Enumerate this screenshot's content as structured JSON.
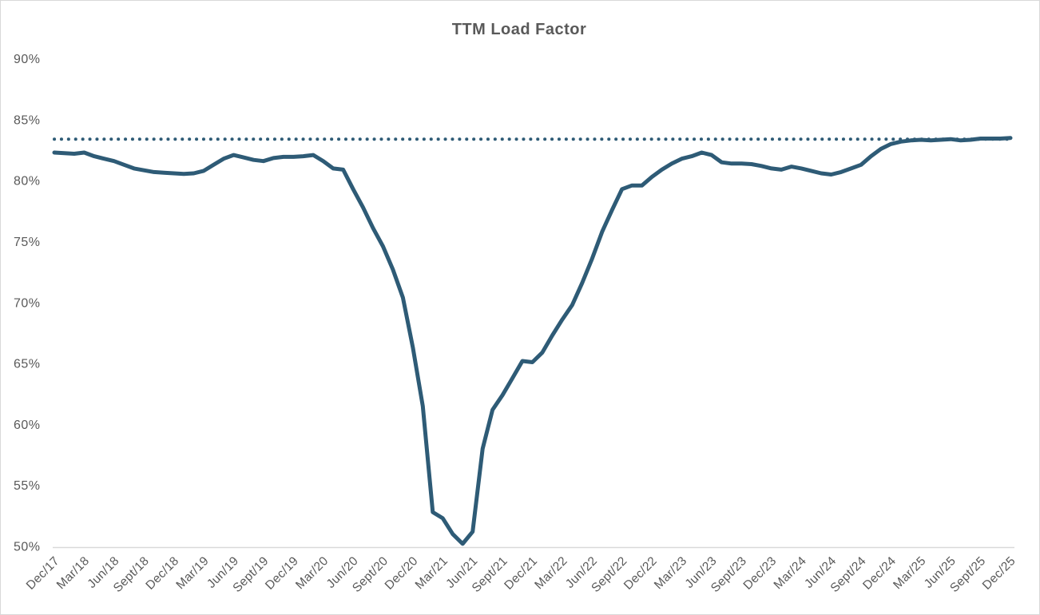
{
  "chart_data": {
    "type": "line",
    "title": "TTM Load Factor",
    "legend": "none",
    "grid": "off",
    "ylim": [
      50,
      90
    ],
    "ytick_step": 5,
    "ytick_labels": [
      "90%",
      "85%",
      "80%",
      "75%",
      "70%",
      "65%",
      "60%",
      "55%",
      "50%"
    ],
    "x_tick_labels": [
      "Dec/17",
      "Mar/18",
      "Jun/18",
      "Sept/18",
      "Dec/18",
      "Mar/19",
      "Jun/19",
      "Sept/19",
      "Dec/19",
      "Mar/20",
      "Jun/20",
      "Sept/20",
      "Dec/20",
      "Mar/21",
      "Jun/21",
      "Sept/21",
      "Dec/21",
      "Mar/22",
      "Jun/22",
      "Sept/22",
      "Dec/22",
      "Mar/23",
      "Jun/23",
      "Sept/23",
      "Dec/23",
      "Mar/24",
      "Jun/24",
      "Sept/24",
      "Dec/24",
      "Mar/25",
      "Jun/25",
      "Sept/25",
      "Dec/25"
    ],
    "points_per_x_tick": 3,
    "x_frequency": "monthly",
    "series": [
      {
        "name": "TTM Load Factor",
        "unit": "%",
        "values": [
          82.3,
          82.25,
          82.2,
          82.3,
          82.0,
          81.8,
          81.6,
          81.3,
          81.0,
          80.85,
          80.7,
          80.65,
          80.6,
          80.55,
          80.6,
          80.8,
          81.3,
          81.8,
          82.1,
          81.9,
          81.7,
          81.6,
          81.85,
          81.95,
          81.95,
          82.0,
          82.1,
          81.6,
          81.0,
          80.9,
          79.3,
          77.8,
          76.1,
          74.6,
          72.7,
          70.4,
          66.3,
          61.5,
          52.8,
          52.3,
          51.0,
          50.2,
          51.2,
          58.0,
          61.2,
          62.4,
          63.8,
          65.2,
          65.1,
          65.9,
          67.3,
          68.6,
          69.8,
          71.6,
          73.6,
          75.8,
          77.6,
          79.3,
          79.6,
          79.6,
          80.3,
          80.9,
          81.4,
          81.8,
          82.0,
          82.3,
          82.1,
          81.5,
          81.4,
          81.4,
          81.35,
          81.2,
          81.0,
          80.9,
          81.15,
          81.0,
          80.8,
          80.6,
          80.5,
          80.7,
          81.0,
          81.3,
          82.0,
          82.6,
          83.0,
          83.2,
          83.3,
          83.35,
          83.3,
          83.35,
          83.4,
          83.3,
          83.35,
          83.45,
          83.45,
          83.45,
          83.5
        ]
      }
    ],
    "reference_line": {
      "style": "dotted",
      "value": 83.4
    },
    "colors": {
      "line": "#2E5B76",
      "reference_line": "#2E5B76",
      "text": "#595959",
      "axis_line": "#D9D9D9",
      "background": "#FFFFFF",
      "border": "#D9D9D9"
    }
  }
}
